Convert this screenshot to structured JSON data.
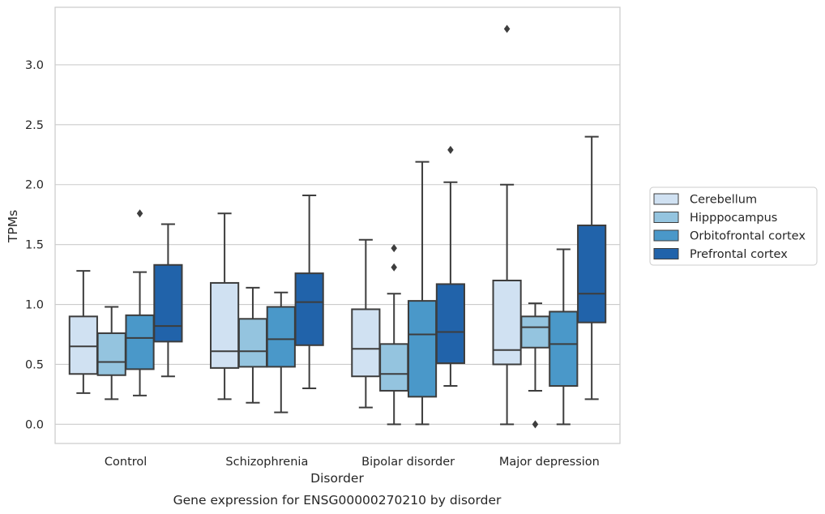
{
  "caption": "Gene expression for ENSG00000270210 by disorder",
  "chart_data": {
    "type": "box",
    "xlabel": "Disorder",
    "ylabel": "TPMs",
    "ylim": [
      -0.16,
      3.48
    ],
    "yticks": [
      0.0,
      0.5,
      1.0,
      1.5,
      2.0,
      2.5,
      3.0
    ],
    "ytick_labels": [
      "0.0",
      "0.5",
      "1.0",
      "1.5",
      "2.0",
      "2.5",
      "3.0"
    ],
    "grid": "horizontal",
    "legend_position": "right",
    "categories": [
      "Control",
      "Schizophrenia",
      "Bipolar disorder",
      "Major depression"
    ],
    "series": [
      {
        "name": "Cerebellum",
        "color": "#d0e1f2",
        "boxes": [
          {
            "whisker_low": 0.26,
            "q1": 0.42,
            "median": 0.65,
            "q3": 0.9,
            "whisker_high": 1.28,
            "outliers": []
          },
          {
            "whisker_low": 0.21,
            "q1": 0.47,
            "median": 0.61,
            "q3": 1.18,
            "whisker_high": 1.76,
            "outliers": []
          },
          {
            "whisker_low": 0.14,
            "q1": 0.4,
            "median": 0.63,
            "q3": 0.96,
            "whisker_high": 1.54,
            "outliers": []
          },
          {
            "whisker_low": 0.0,
            "q1": 0.5,
            "median": 0.62,
            "q3": 1.2,
            "whisker_high": 2.0,
            "outliers": [
              3.3
            ]
          }
        ]
      },
      {
        "name": "Hipppocampus",
        "color": "#94c4df",
        "boxes": [
          {
            "whisker_low": 0.21,
            "q1": 0.41,
            "median": 0.52,
            "q3": 0.76,
            "whisker_high": 0.98,
            "outliers": []
          },
          {
            "whisker_low": 0.18,
            "q1": 0.48,
            "median": 0.61,
            "q3": 0.88,
            "whisker_high": 1.14,
            "outliers": []
          },
          {
            "whisker_low": 0.0,
            "q1": 0.28,
            "median": 0.42,
            "q3": 0.67,
            "whisker_high": 1.09,
            "outliers": [
              1.31,
              1.47
            ]
          },
          {
            "whisker_low": 0.28,
            "q1": 0.64,
            "median": 0.81,
            "q3": 0.9,
            "whisker_high": 1.01,
            "outliers": [
              0.0
            ]
          }
        ]
      },
      {
        "name": "Orbitofrontal cortex",
        "color": "#4a98c9",
        "boxes": [
          {
            "whisker_low": 0.24,
            "q1": 0.46,
            "median": 0.72,
            "q3": 0.91,
            "whisker_high": 1.27,
            "outliers": [
              1.76
            ]
          },
          {
            "whisker_low": 0.1,
            "q1": 0.48,
            "median": 0.71,
            "q3": 0.98,
            "whisker_high": 1.1,
            "outliers": []
          },
          {
            "whisker_low": 0.0,
            "q1": 0.23,
            "median": 0.75,
            "q3": 1.03,
            "whisker_high": 2.19,
            "outliers": []
          },
          {
            "whisker_low": 0.0,
            "q1": 0.32,
            "median": 0.67,
            "q3": 0.94,
            "whisker_high": 1.46,
            "outliers": []
          }
        ]
      },
      {
        "name": "Prefrontal cortex",
        "color": "#2163aa",
        "boxes": [
          {
            "whisker_low": 0.4,
            "q1": 0.69,
            "median": 0.82,
            "q3": 1.33,
            "whisker_high": 1.67,
            "outliers": []
          },
          {
            "whisker_low": 0.3,
            "q1": 0.66,
            "median": 1.02,
            "q3": 1.26,
            "whisker_high": 1.91,
            "outliers": []
          },
          {
            "whisker_low": 0.32,
            "q1": 0.51,
            "median": 0.77,
            "q3": 1.17,
            "whisker_high": 2.02,
            "outliers": [
              2.29
            ]
          },
          {
            "whisker_low": 0.21,
            "q1": 0.85,
            "median": 1.09,
            "q3": 1.66,
            "whisker_high": 2.4,
            "outliers": []
          }
        ]
      }
    ]
  }
}
